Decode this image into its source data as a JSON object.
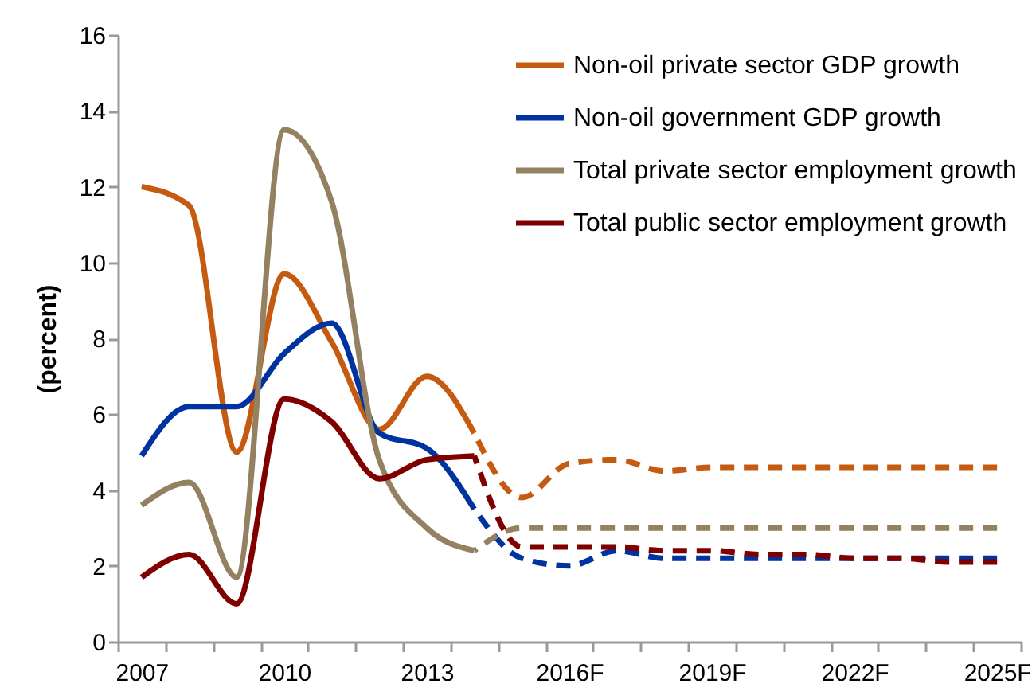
{
  "chart_data": {
    "type": "line",
    "ylabel": "(percent)",
    "categories": [
      "2007",
      null,
      null,
      "2010",
      null,
      null,
      "2013",
      null,
      null,
      "2016F",
      null,
      null,
      "2019F",
      null,
      null,
      "2022F",
      null,
      null,
      "2025F"
    ],
    "ylim": [
      0,
      16
    ],
    "yticks": [
      0,
      2,
      4,
      6,
      8,
      10,
      12,
      14,
      16
    ],
    "grid": false,
    "legend": "top right",
    "series": [
      {
        "name": "Non-oil private sector GDP growth",
        "color": "#c55a11",
        "line_style": "solid",
        "values": [
          12.0,
          11.5,
          5.0,
          9.7,
          7.9,
          5.6,
          7.0,
          5.5,
          null,
          null,
          null,
          null,
          null,
          null,
          null,
          null,
          null,
          null,
          null
        ]
      },
      {
        "name": "Non-oil government GDP growth",
        "color": "#0033a0",
        "line_style": "solid",
        "values": [
          4.9,
          6.2,
          6.2,
          7.6,
          8.4,
          5.5,
          5.1,
          3.5,
          null,
          null,
          null,
          null,
          null,
          null,
          null,
          null,
          null,
          null,
          null
        ]
      },
      {
        "name": "Total private sector employment growth",
        "color": "#948161",
        "line_style": "solid",
        "values": [
          3.6,
          4.2,
          1.7,
          13.5,
          11.6,
          4.8,
          3.0,
          2.4,
          null,
          null,
          null,
          null,
          null,
          null,
          null,
          null,
          null,
          null,
          null
        ]
      },
      {
        "name": "Total public sector employment growth",
        "color": "#800000",
        "line_style": "solid",
        "values": [
          1.7,
          2.3,
          1.0,
          6.4,
          5.8,
          4.3,
          4.8,
          4.9,
          null,
          null,
          null,
          null,
          null,
          null,
          null,
          null,
          null,
          null,
          null
        ]
      },
      {
        "color": "#c55a11",
        "line_style": "dashed",
        "values": [
          null,
          null,
          null,
          null,
          null,
          null,
          null,
          5.5,
          3.8,
          4.7,
          4.8,
          4.5,
          4.6,
          4.6,
          4.6,
          4.6,
          4.6,
          4.6,
          4.6
        ]
      },
      {
        "color": "#0033a0",
        "line_style": "dashed",
        "values": [
          null,
          null,
          null,
          null,
          null,
          null,
          null,
          3.5,
          2.2,
          2.0,
          2.4,
          2.2,
          2.2,
          2.2,
          2.2,
          2.2,
          2.2,
          2.2,
          2.2
        ]
      },
      {
        "color": "#948161",
        "line_style": "dashed",
        "values": [
          null,
          null,
          null,
          null,
          null,
          null,
          null,
          2.4,
          3.0,
          3.0,
          3.0,
          3.0,
          3.0,
          3.0,
          3.0,
          3.0,
          3.0,
          3.0,
          3.0
        ]
      },
      {
        "color": "#800000",
        "line_style": "dashed",
        "values": [
          null,
          null,
          null,
          null,
          null,
          null,
          null,
          4.9,
          2.5,
          2.5,
          2.5,
          2.4,
          2.4,
          2.3,
          2.3,
          2.2,
          2.2,
          2.1,
          2.1
        ]
      }
    ]
  }
}
